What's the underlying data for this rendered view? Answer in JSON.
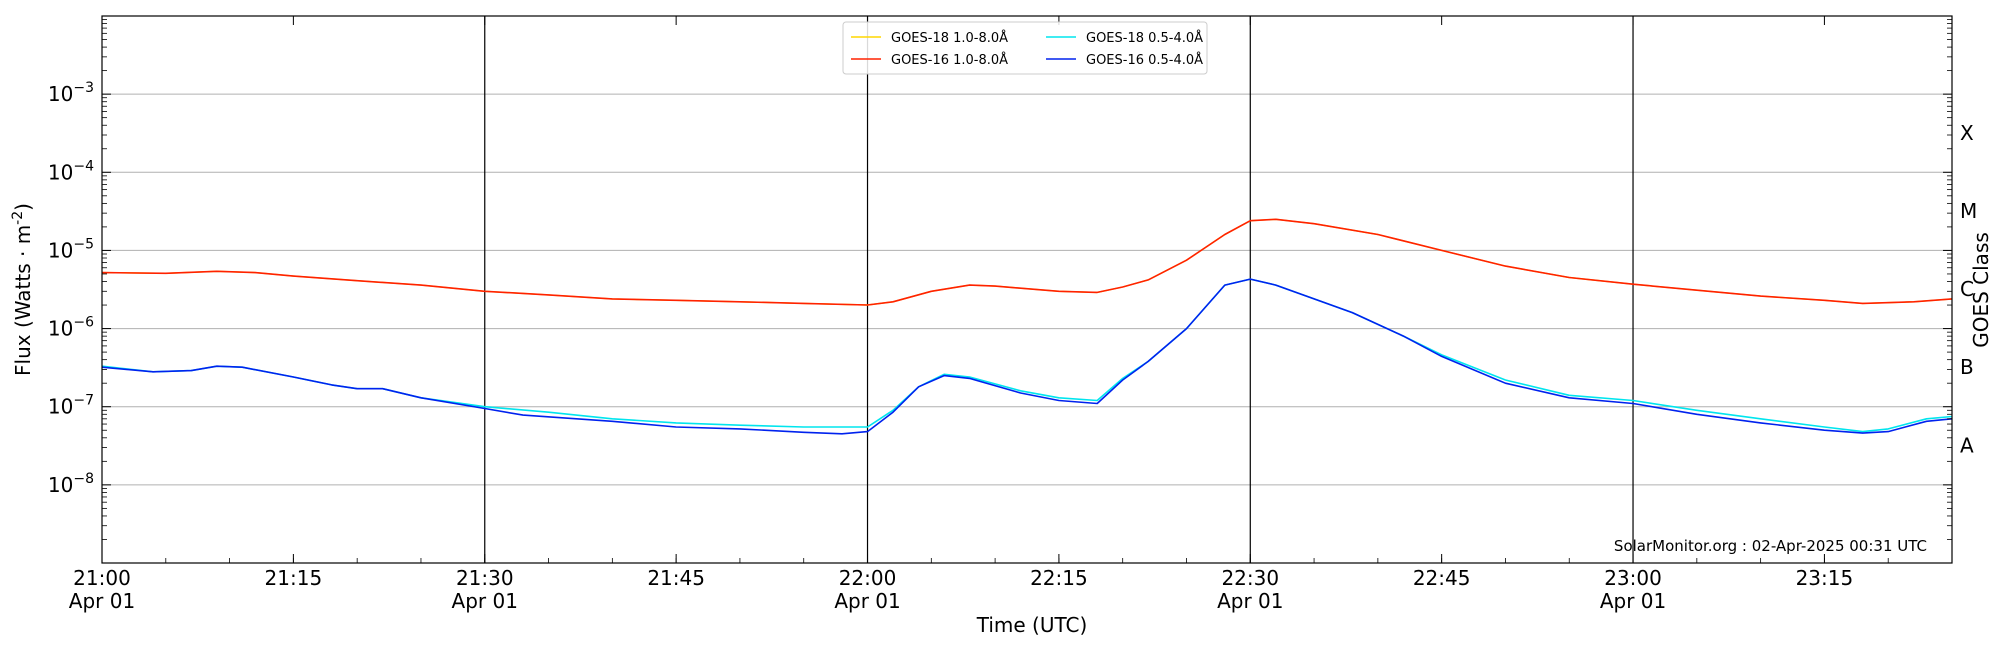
{
  "chart_data": {
    "type": "line",
    "xlabel": "Time (UTC)",
    "ylabel": "Flux (Watts · m",
    "ylabel_sup": "-2",
    "ylabel_close": ")",
    "y2label": "GOES Class",
    "y_scale": "log",
    "ylim": [
      1e-09,
      0.01
    ],
    "xlim_minutes_labels": [
      "21:00",
      "23:25"
    ],
    "credit": "SolarMonitor.org : 02-Apr-2025 00:31 UTC",
    "x_ticks": [
      {
        "label": "21:00",
        "sub": "Apr 01",
        "t": "21:00"
      },
      {
        "label": "21:15",
        "sub": "",
        "t": "21:15"
      },
      {
        "label": "21:30",
        "sub": "Apr 01",
        "t": "21:30"
      },
      {
        "label": "21:45",
        "sub": "",
        "t": "21:45"
      },
      {
        "label": "22:00",
        "sub": "Apr 01",
        "t": "22:00"
      },
      {
        "label": "22:15",
        "sub": "",
        "t": "22:15"
      },
      {
        "label": "22:30",
        "sub": "Apr 01",
        "t": "22:30"
      },
      {
        "label": "22:45",
        "sub": "",
        "t": "22:45"
      },
      {
        "label": "23:00",
        "sub": "Apr 01",
        "t": "23:00"
      },
      {
        "label": "23:15",
        "sub": "",
        "t": "23:15"
      }
    ],
    "x_end": "23:25",
    "vlines": [
      "21:30",
      "22:00",
      "22:30",
      "23:00"
    ],
    "y_ticks": [
      {
        "exp": "-8",
        "value": 1e-08
      },
      {
        "exp": "-7",
        "value": 1e-07
      },
      {
        "exp": "-6",
        "value": 1e-06
      },
      {
        "exp": "-5",
        "value": 1e-05
      },
      {
        "exp": "-4",
        "value": 0.0001
      },
      {
        "exp": "-3",
        "value": 0.001
      }
    ],
    "goes_classes": [
      {
        "label": "A",
        "value": 1e-08
      },
      {
        "label": "B",
        "value": 1e-07
      },
      {
        "label": "C",
        "value": 1e-06
      },
      {
        "label": "M",
        "value": 1e-05
      },
      {
        "label": "X",
        "value": 0.0001
      }
    ],
    "legend": {
      "placement": "top-center",
      "columns": [
        [
          {
            "name": "GOES-18 1.0-8.0Å",
            "color": "#ffd700"
          },
          {
            "name": "GOES-16 1.0-8.0Å",
            "color": "#ff2200"
          }
        ],
        [
          {
            "name": "GOES-18 0.5-4.0Å",
            "color": "#00e5ee"
          },
          {
            "name": "GOES-16 0.5-4.0Å",
            "color": "#0022ee"
          }
        ]
      ]
    },
    "series": [
      {
        "name": "GOES-18 1.0-8.0Å",
        "color": "#ffd700",
        "points": [
          [
            "21:00",
            5.2e-06
          ],
          [
            "21:05",
            5.1e-06
          ],
          [
            "21:09",
            5.4e-06
          ],
          [
            "21:12",
            5.2e-06
          ],
          [
            "21:15",
            4.7e-06
          ],
          [
            "21:20",
            4.1e-06
          ],
          [
            "21:25",
            3.6e-06
          ],
          [
            "21:30",
            3e-06
          ],
          [
            "21:35",
            2.7e-06
          ],
          [
            "21:40",
            2.4e-06
          ],
          [
            "21:45",
            2.3e-06
          ],
          [
            "21:50",
            2.2e-06
          ],
          [
            "21:55",
            2.1e-06
          ],
          [
            "22:00",
            2e-06
          ],
          [
            "22:02",
            2.2e-06
          ],
          [
            "22:05",
            3e-06
          ],
          [
            "22:08",
            3.6e-06
          ],
          [
            "22:10",
            3.5e-06
          ],
          [
            "22:15",
            3e-06
          ],
          [
            "22:18",
            2.9e-06
          ],
          [
            "22:20",
            3.4e-06
          ],
          [
            "22:22",
            4.2e-06
          ],
          [
            "22:25",
            7.5e-06
          ],
          [
            "22:28",
            1.6e-05
          ],
          [
            "22:30",
            2.4e-05
          ],
          [
            "22:32",
            2.5e-05
          ],
          [
            "22:35",
            2.2e-05
          ],
          [
            "22:40",
            1.6e-05
          ],
          [
            "22:45",
            1e-05
          ],
          [
            "22:50",
            6.3e-06
          ],
          [
            "22:55",
            4.5e-06
          ],
          [
            "23:00",
            3.7e-06
          ],
          [
            "23:05",
            3.1e-06
          ],
          [
            "23:10",
            2.6e-06
          ],
          [
            "23:15",
            2.3e-06
          ],
          [
            "23:18",
            2.1e-06
          ],
          [
            "23:22",
            2.2e-06
          ],
          [
            "23:25",
            2.4e-06
          ]
        ]
      },
      {
        "name": "GOES-16 1.0-8.0Å",
        "color": "#ff2200",
        "points": [
          [
            "21:00",
            5.2e-06
          ],
          [
            "21:05",
            5.1e-06
          ],
          [
            "21:09",
            5.4e-06
          ],
          [
            "21:12",
            5.2e-06
          ],
          [
            "21:15",
            4.7e-06
          ],
          [
            "21:20",
            4.1e-06
          ],
          [
            "21:25",
            3.6e-06
          ],
          [
            "21:30",
            3e-06
          ],
          [
            "21:35",
            2.7e-06
          ],
          [
            "21:40",
            2.4e-06
          ],
          [
            "21:45",
            2.3e-06
          ],
          [
            "21:50",
            2.2e-06
          ],
          [
            "21:55",
            2.1e-06
          ],
          [
            "22:00",
            2e-06
          ],
          [
            "22:02",
            2.2e-06
          ],
          [
            "22:05",
            3e-06
          ],
          [
            "22:08",
            3.6e-06
          ],
          [
            "22:10",
            3.5e-06
          ],
          [
            "22:15",
            3e-06
          ],
          [
            "22:18",
            2.9e-06
          ],
          [
            "22:20",
            3.4e-06
          ],
          [
            "22:22",
            4.2e-06
          ],
          [
            "22:25",
            7.5e-06
          ],
          [
            "22:28",
            1.6e-05
          ],
          [
            "22:30",
            2.4e-05
          ],
          [
            "22:32",
            2.5e-05
          ],
          [
            "22:35",
            2.2e-05
          ],
          [
            "22:40",
            1.6e-05
          ],
          [
            "22:45",
            1e-05
          ],
          [
            "22:50",
            6.3e-06
          ],
          [
            "22:55",
            4.5e-06
          ],
          [
            "23:00",
            3.7e-06
          ],
          [
            "23:05",
            3.1e-06
          ],
          [
            "23:10",
            2.6e-06
          ],
          [
            "23:15",
            2.3e-06
          ],
          [
            "23:18",
            2.1e-06
          ],
          [
            "23:22",
            2.2e-06
          ],
          [
            "23:25",
            2.4e-06
          ]
        ]
      },
      {
        "name": "GOES-18 0.5-4.0Å",
        "color": "#00e5ee",
        "points": [
          [
            "21:00",
            3.3e-07
          ],
          [
            "21:04",
            2.8e-07
          ],
          [
            "21:07",
            2.9e-07
          ],
          [
            "21:09",
            3.3e-07
          ],
          [
            "21:11",
            3.2e-07
          ],
          [
            "21:15",
            2.4e-07
          ],
          [
            "21:18",
            1.9e-07
          ],
          [
            "21:20",
            1.7e-07
          ],
          [
            "21:22",
            1.7e-07
          ],
          [
            "21:25",
            1.3e-07
          ],
          [
            "21:30",
            1e-07
          ],
          [
            "21:35",
            8.5e-08
          ],
          [
            "21:40",
            7e-08
          ],
          [
            "21:45",
            6.2e-08
          ],
          [
            "21:50",
            5.8e-08
          ],
          [
            "21:55",
            5.5e-08
          ],
          [
            "22:00",
            5.5e-08
          ],
          [
            "22:02",
            9e-08
          ],
          [
            "22:04",
            1.8e-07
          ],
          [
            "22:06",
            2.6e-07
          ],
          [
            "22:08",
            2.4e-07
          ],
          [
            "22:12",
            1.6e-07
          ],
          [
            "22:15",
            1.3e-07
          ],
          [
            "22:18",
            1.2e-07
          ],
          [
            "22:20",
            2.3e-07
          ],
          [
            "22:22",
            3.8e-07
          ],
          [
            "22:25",
            1e-06
          ],
          [
            "22:28",
            3.6e-06
          ],
          [
            "22:30",
            4.3e-06
          ],
          [
            "22:32",
            3.6e-06
          ],
          [
            "22:35",
            2.4e-06
          ],
          [
            "22:38",
            1.6e-06
          ],
          [
            "22:42",
            8e-07
          ],
          [
            "22:45",
            4.6e-07
          ],
          [
            "22:50",
            2.2e-07
          ],
          [
            "22:55",
            1.4e-07
          ],
          [
            "23:00",
            1.2e-07
          ],
          [
            "23:05",
            9e-08
          ],
          [
            "23:10",
            7e-08
          ],
          [
            "23:15",
            5.5e-08
          ],
          [
            "23:18",
            4.8e-08
          ],
          [
            "23:20",
            5.2e-08
          ],
          [
            "23:23",
            7e-08
          ],
          [
            "23:25",
            7.5e-08
          ]
        ]
      },
      {
        "name": "GOES-16 0.5-4.0Å",
        "color": "#0022ee",
        "points": [
          [
            "21:00",
            3.2e-07
          ],
          [
            "21:04",
            2.8e-07
          ],
          [
            "21:07",
            2.9e-07
          ],
          [
            "21:09",
            3.3e-07
          ],
          [
            "21:11",
            3.2e-07
          ],
          [
            "21:15",
            2.4e-07
          ],
          [
            "21:18",
            1.9e-07
          ],
          [
            "21:20",
            1.7e-07
          ],
          [
            "21:22",
            1.7e-07
          ],
          [
            "21:25",
            1.3e-07
          ],
          [
            "21:30",
            9.5e-08
          ],
          [
            "21:33",
            7.8e-08
          ],
          [
            "21:40",
            6.5e-08
          ],
          [
            "21:45",
            5.5e-08
          ],
          [
            "21:50",
            5.2e-08
          ],
          [
            "21:55",
            4.7e-08
          ],
          [
            "21:58",
            4.5e-08
          ],
          [
            "22:00",
            4.8e-08
          ],
          [
            "22:02",
            8.5e-08
          ],
          [
            "22:04",
            1.8e-07
          ],
          [
            "22:06",
            2.5e-07
          ],
          [
            "22:08",
            2.3e-07
          ],
          [
            "22:12",
            1.5e-07
          ],
          [
            "22:15",
            1.2e-07
          ],
          [
            "22:18",
            1.1e-07
          ],
          [
            "22:20",
            2.2e-07
          ],
          [
            "22:22",
            3.8e-07
          ],
          [
            "22:25",
            1e-06
          ],
          [
            "22:28",
            3.6e-06
          ],
          [
            "22:30",
            4.3e-06
          ],
          [
            "22:32",
            3.6e-06
          ],
          [
            "22:35",
            2.4e-06
          ],
          [
            "22:38",
            1.6e-06
          ],
          [
            "22:42",
            8e-07
          ],
          [
            "22:45",
            4.4e-07
          ],
          [
            "22:50",
            2e-07
          ],
          [
            "22:55",
            1.3e-07
          ],
          [
            "23:00",
            1.1e-07
          ],
          [
            "23:05",
            8e-08
          ],
          [
            "23:10",
            6.2e-08
          ],
          [
            "23:15",
            5e-08
          ],
          [
            "23:18",
            4.6e-08
          ],
          [
            "23:20",
            4.8e-08
          ],
          [
            "23:23",
            6.5e-08
          ],
          [
            "23:25",
            7e-08
          ]
        ]
      }
    ]
  }
}
